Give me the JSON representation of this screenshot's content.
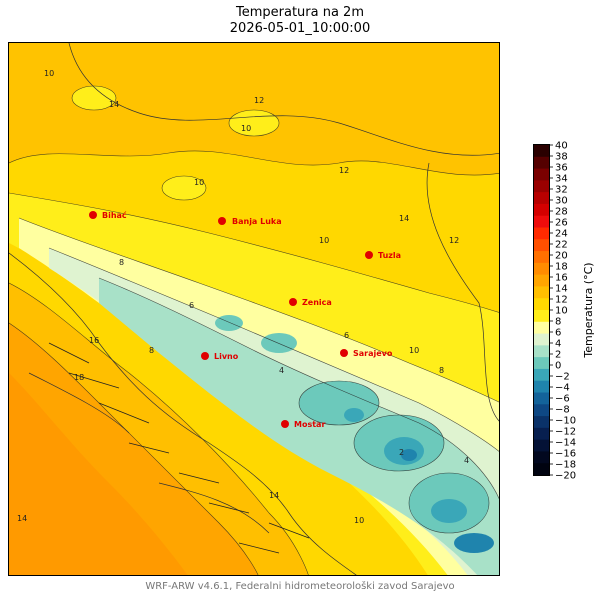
{
  "title": "Temperatura na 2m",
  "subtitle": "2026-05-01_10:00:00",
  "colorbar": {
    "label": "Temperatura (°C)",
    "ticks": [
      "40",
      "38",
      "36",
      "34",
      "32",
      "30",
      "28",
      "26",
      "24",
      "22",
      "20",
      "18",
      "16",
      "14",
      "12",
      "10",
      "8",
      "6",
      "4",
      "2",
      "0",
      "−2",
      "−4",
      "−6",
      "−8",
      "−10",
      "−12",
      "−14",
      "−16",
      "−18",
      "−20"
    ],
    "colors": [
      "#2a0000",
      "#550000",
      "#7a0000",
      "#9a0000",
      "#b80000",
      "#d40000",
      "#ee0c0c",
      "#ff2a00",
      "#ff5000",
      "#ff7000",
      "#ff8c00",
      "#ffa500",
      "#ffbf00",
      "#ffd800",
      "#ffee1a",
      "#ffffa0",
      "#dff3d0",
      "#a8e1c8",
      "#6cc9bb",
      "#3aa7b8",
      "#1f84ad",
      "#13639a",
      "#0e4884",
      "#0a3269",
      "#071f4f",
      "#041236",
      "#02081f",
      "#000310"
    ]
  },
  "cities": [
    {
      "name": "Bihać"
    },
    {
      "name": "Banja Luka"
    },
    {
      "name": "Tuzla"
    },
    {
      "name": "Zenica"
    },
    {
      "name": "Sarajevo"
    },
    {
      "name": "Livno"
    },
    {
      "name": "Mostar"
    }
  ],
  "contour_labels": [
    "10",
    "14",
    "12",
    "10",
    "12",
    "10",
    "14",
    "10",
    "8",
    "6",
    "4",
    "2",
    "16",
    "18",
    "14",
    "6",
    "10",
    "4",
    "8",
    "8",
    "12",
    "10",
    "14"
  ],
  "footer": "WRF-ARW v4.6.1, Federalni hidrometeorološki zavod Sarajevo"
}
